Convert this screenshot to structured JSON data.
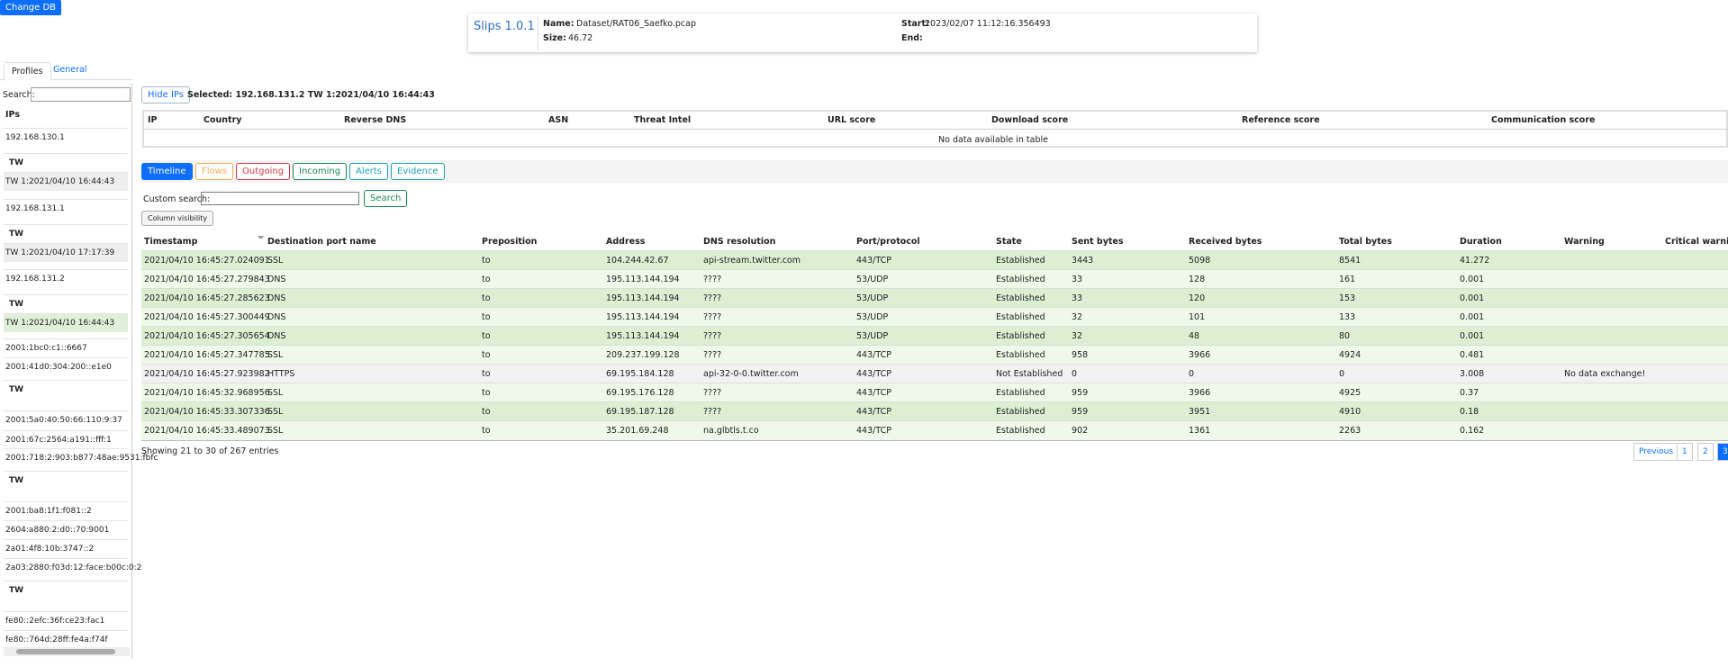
{
  "header": {
    "change_db": "Change DB",
    "title": "Slips 1.0.1",
    "name_label": "Name:",
    "name": "Dataset/RAT06_Saefko.pcap",
    "size_label": "Size:",
    "size": "46.72",
    "start_label": "Start:",
    "start": "2023/02/07 11:12:16.356493",
    "end_label": "End:"
  },
  "tabs": [
    "Profiles",
    "General"
  ],
  "sidebar": {
    "search_label": "Search:",
    "column": "IPs",
    "items": [
      "192.168.130.1",
      "TW",
      "TW 1:2021/04/10 16:44:43",
      "192.168.131.1",
      "TW",
      "TW 1:2021/04/10 17:17:39",
      "192.168.131.2",
      "TW",
      "TW 1:2021/04/10 16:44:43",
      "2001:1bc0:c1::6667",
      "2001:41d0:304:200::e1e0",
      "TW",
      "2001:5a0:40:50:66:110:9:37",
      "2001:67c:2564:a191::fff:1",
      "2001:718:2:903:b877:48ae:9531:fbfc",
      "TW",
      "2001:ba8:1f1:f081::2",
      "2604:a880:2:d0::70:9001",
      "2a01:4f8:10b:3747::2",
      "2a03:2880:f03d:12:face:b00c:0:2",
      "TW",
      "fe80::2efc:36f:ce23:fac1",
      "fe80::764d:28ff:fe4a:f74f"
    ]
  },
  "hide_ips": "Hide IPs",
  "selected": "Selected: 192.168.131.2 TW 1:2021/04/10 16:44:43",
  "ip_table": {
    "columns": [
      "IP",
      "Country",
      "Reverse DNS",
      "ASN",
      "Threat Intel",
      "URL score",
      "Download score",
      "Reference score",
      "Communication score"
    ],
    "empty": "No data available in table"
  },
  "view_buttons": [
    "Timeline",
    "Flows",
    "Outgoing",
    "Incoming",
    "Alerts",
    "Evidence"
  ],
  "custom_search": "Custom search:",
  "search_button": "Search",
  "column_visibility": "Column visibility",
  "table": {
    "columns": [
      "Timestamp",
      "Destination port name",
      "Preposition",
      "Address",
      "DNS resolution",
      "Port/protocol",
      "State",
      "Sent bytes",
      "Received bytes",
      "Total bytes",
      "Duration",
      "Warning",
      "Critical warning"
    ],
    "rows": [
      [
        "2021/04/10 16:45:27.024091",
        "SSL",
        "to",
        "104.244.42.67",
        "api-stream.twitter.com",
        "443/TCP",
        "Established",
        "3443",
        "5098",
        "8541",
        "41.272",
        "",
        ""
      ],
      [
        "2021/04/10 16:45:27.279843",
        "DNS",
        "to",
        "195.113.144.194",
        "????",
        "53/UDP",
        "Established",
        "33",
        "128",
        "161",
        "0.001",
        "",
        ""
      ],
      [
        "2021/04/10 16:45:27.285623",
        "DNS",
        "to",
        "195.113.144.194",
        "????",
        "53/UDP",
        "Established",
        "33",
        "120",
        "153",
        "0.001",
        "",
        ""
      ],
      [
        "2021/04/10 16:45:27.300449",
        "DNS",
        "to",
        "195.113.144.194",
        "????",
        "53/UDP",
        "Established",
        "32",
        "101",
        "133",
        "0.001",
        "",
        ""
      ],
      [
        "2021/04/10 16:45:27.305654",
        "DNS",
        "to",
        "195.113.144.194",
        "????",
        "53/UDP",
        "Established",
        "32",
        "48",
        "80",
        "0.001",
        "",
        ""
      ],
      [
        "2021/04/10 16:45:27.347785",
        "SSL",
        "to",
        "209.237.199.128",
        "????",
        "443/TCP",
        "Established",
        "958",
        "3966",
        "4924",
        "0.481",
        "",
        ""
      ],
      [
        "2021/04/10 16:45:27.923982",
        "HTTPS",
        "to",
        "69.195.184.128",
        "api-32-0-0.twitter.com",
        "443/TCP",
        "Not Established",
        "0",
        "0",
        "0",
        "3.008",
        "No data exchange!",
        ""
      ],
      [
        "2021/04/10 16:45:32.968956",
        "SSL",
        "to",
        "69.195.176.128",
        "????",
        "443/TCP",
        "Established",
        "959",
        "3966",
        "4925",
        "0.37",
        "",
        ""
      ],
      [
        "2021/04/10 16:45:33.307336",
        "SSL",
        "to",
        "69.195.187.128",
        "????",
        "443/TCP",
        "Established",
        "959",
        "3951",
        "4910",
        "0.18",
        "",
        ""
      ],
      [
        "2021/04/10 16:45:33.489073",
        "SSL",
        "to",
        "35.201.69.248",
        "na.glbtls.t.co",
        "443/TCP",
        "Established",
        "902",
        "1361",
        "2263",
        "0.162",
        "",
        ""
      ]
    ]
  },
  "info": "Showing 21 to 30 of 267 entries",
  "pagination": [
    "Previous",
    "1",
    "2",
    "3"
  ]
}
